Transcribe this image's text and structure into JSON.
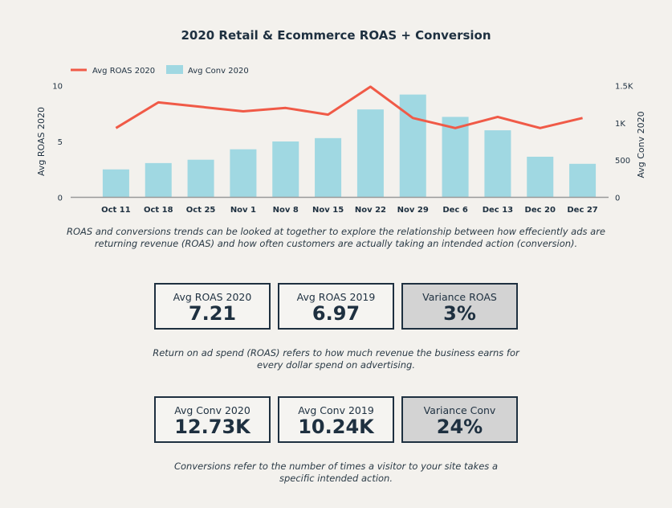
{
  "chart_data": {
    "type": "bar+line",
    "title": "2020 Retail & Ecommerce ROAS + Conversion",
    "categories": [
      "Oct 11",
      "Oct 18",
      "Oct 25",
      "Nov 1",
      "Nov 8",
      "Nov 15",
      "Nov 22",
      "Nov 29",
      "Dec 6",
      "Dec 13",
      "Dec 20",
      "Dec 27"
    ],
    "series": [
      {
        "name": "Avg ROAS 2020",
        "type": "line",
        "axis": "left",
        "color": "#f05a47",
        "values": [
          6.2,
          8.5,
          8.1,
          7.7,
          8.0,
          7.4,
          9.9,
          7.1,
          6.2,
          7.2,
          6.2,
          7.1
        ]
      },
      {
        "name": "Avg Conv 2020",
        "type": "bar",
        "axis": "right",
        "color": "#a0d8e2",
        "values": [
          375,
          460,
          505,
          645,
          750,
          795,
          1180,
          1380,
          1080,
          900,
          545,
          450
        ]
      }
    ],
    "ylabel_left": "Avg ROAS 2020",
    "ylabel_right": "Avg Conv 2020",
    "ylim_left": [
      0,
      10
    ],
    "ylim_right": [
      0,
      1500
    ],
    "yticks_left": [
      "0",
      "5",
      "10"
    ],
    "yticks_right": [
      "0",
      "500",
      "1K",
      "1.5K"
    ],
    "legend": "top-left",
    "grid": false
  },
  "chart_description": "ROAS and conversions trends can be looked at together to explore the relationship between how effeciently ads are returning revenue (ROAS) and how often customers are actually taking an intended action (conversion).",
  "roas_stats": [
    {
      "label": "Avg ROAS 2020",
      "value": "7.21"
    },
    {
      "label": "Avg ROAS 2019",
      "value": "6.97"
    },
    {
      "label": "Variance ROAS",
      "value": "3%"
    }
  ],
  "roas_note": "Return on ad spend (ROAS) refers to how much revenue the business earns for every dollar spend on advertising.",
  "conv_stats": [
    {
      "label": "Avg Conv 2020",
      "value": "12.73K"
    },
    {
      "label": "Avg Conv 2019",
      "value": "10.24K"
    },
    {
      "label": "Variance Conv",
      "value": "24%"
    }
  ],
  "conv_note": "Conversions refer to the number of times a visitor to your site takes a specific intended action."
}
